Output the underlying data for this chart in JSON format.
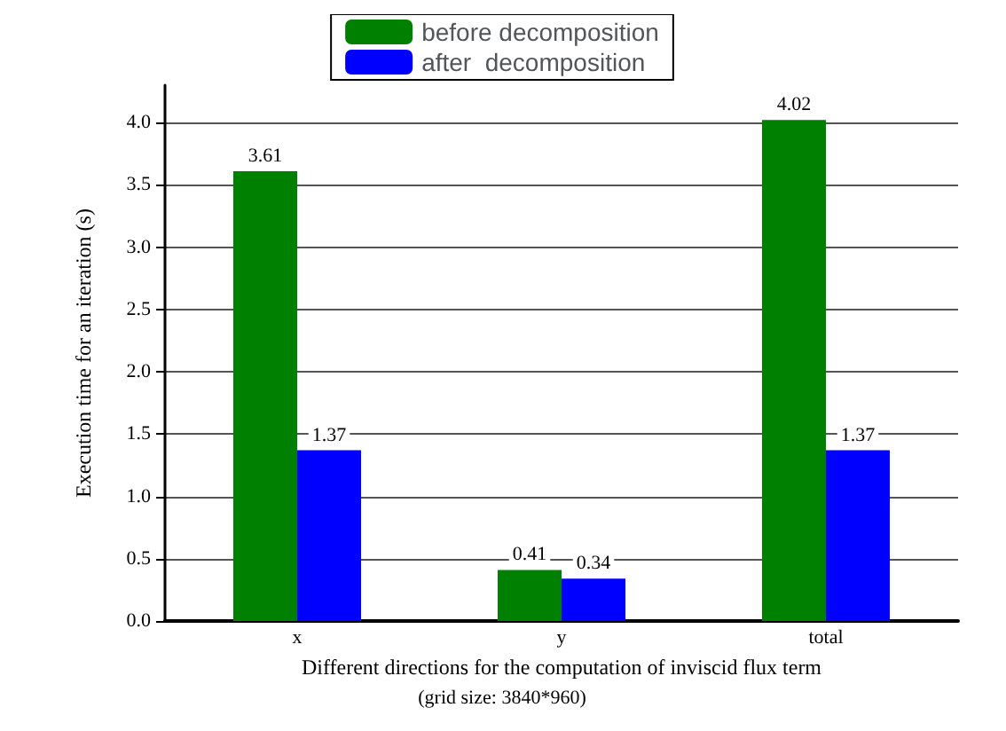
{
  "chart_data": {
    "type": "bar",
    "categories": [
      "x",
      "y",
      "total"
    ],
    "series": [
      {
        "name": "before decomposition",
        "color": "#008000",
        "values": [
          3.61,
          0.41,
          4.02
        ]
      },
      {
        "name": "after  decomposition",
        "color": "#0000ff",
        "values": [
          1.37,
          0.34,
          1.37
        ]
      }
    ],
    "ylabel": "Execution time for an iteration (s)",
    "xlabel": "Different directions for the computation of inviscid flux term",
    "annotations": [
      "(grid size: 3840*960)"
    ],
    "ylim": [
      0,
      4.3
    ],
    "yticks": [
      {
        "value": 0,
        "label": "0.0"
      },
      0.5,
      {
        "value": 1,
        "label": "1.0"
      },
      1.5,
      {
        "value": 2,
        "label": "2.0"
      },
      2.5,
      {
        "value": 3,
        "label": "3.0"
      },
      3.5,
      {
        "value": 4,
        "label": "4.0"
      }
    ],
    "grid": "y",
    "legend": "top",
    "data_labels": true
  }
}
